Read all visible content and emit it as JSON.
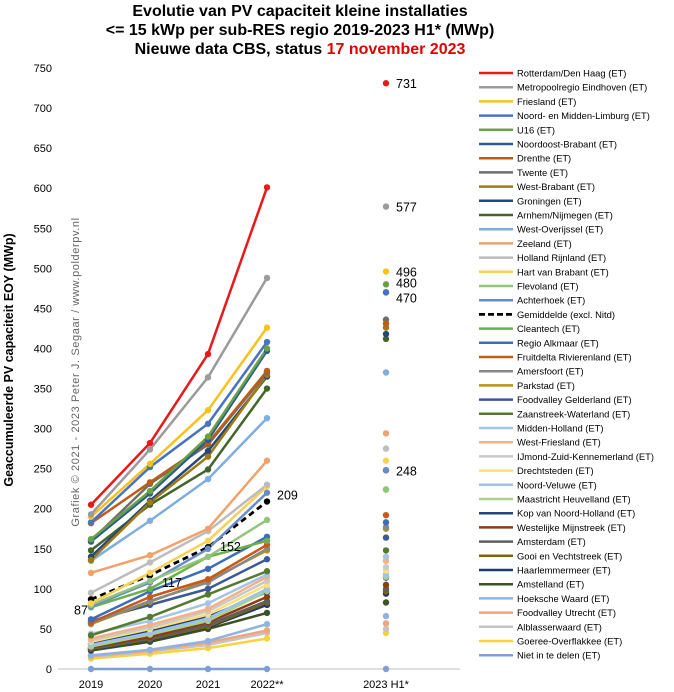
{
  "title": {
    "line1": "Evolutie  van PV capaciteit kleine installaties",
    "line2": "<= 15 kWp per sub-RES regio 2019-2023 H1* (MWp)",
    "line3_prefix": "Nieuwe data CBS, status ",
    "line3_date": "17 november 2023"
  },
  "credit": "Grafiek © 2021 - 2023 Peter J. Segaar / www.polderpv.nl",
  "chart_data": {
    "type": "line",
    "x": [
      "2019",
      "2020",
      "2021",
      "2022**",
      "2023 H1*"
    ],
    "ylabel": "Geaccumuleerde PV capaciteit EOY (MWp)",
    "ylim": [
      0,
      750
    ],
    "yticks": [
      0,
      50,
      100,
      150,
      200,
      250,
      300,
      350,
      400,
      450,
      500,
      550,
      600,
      650,
      700,
      750
    ],
    "grid": false,
    "legend_position": "right",
    "series": [
      {
        "name": "Rotterdam/Den Haag (ET)",
        "color": "#e8191b",
        "width": 2.5,
        "values": [
          205,
          282,
          393,
          601,
          731
        ]
      },
      {
        "name": "Metropoolregio Eindhoven (ET)",
        "color": "#9b9b9b",
        "width": 2.5,
        "values": [
          193,
          274,
          364,
          488,
          577
        ]
      },
      {
        "name": "Friesland (ET)",
        "color": "#f6c21b",
        "width": 2.5,
        "values": [
          190,
          256,
          323,
          426,
          496
        ]
      },
      {
        "name": "Noord- en Midden-Limburg (ET)",
        "color": "#4774c0",
        "width": 2.5,
        "values": [
          183,
          252,
          306,
          408,
          470
        ]
      },
      {
        "name": "U16 (ET)",
        "color": "#6ba145",
        "width": 2.5,
        "values": [
          162,
          222,
          290,
          400,
          480
        ]
      },
      {
        "name": "Noordoost-Brabant (ET)",
        "color": "#2b5c8f",
        "width": 2.5,
        "values": [
          159,
          219,
          286,
          397,
          470
        ]
      },
      {
        "name": "Drenthe (ET)",
        "color": "#c05b16",
        "width": 2.5,
        "values": [
          182,
          233,
          282,
          372,
          431
        ]
      },
      {
        "name": "Twente (ET)",
        "color": "#6e6e6e",
        "width": 2.5,
        "values": [
          160,
          231,
          280,
          370,
          436
        ]
      },
      {
        "name": "West-Brabant (ET)",
        "color": "#9d7b10",
        "width": 2.5,
        "values": [
          136,
          208,
          265,
          367,
          426
        ]
      },
      {
        "name": "Groningen (ET)",
        "color": "#264878",
        "width": 2.5,
        "values": [
          140,
          210,
          272,
          365,
          418
        ]
      },
      {
        "name": "Arnhem/Nijmegen (ET)",
        "color": "#426629",
        "width": 2.5,
        "values": [
          148,
          205,
          249,
          350,
          412
        ]
      },
      {
        "name": "West-Overijssel (ET)",
        "color": "#7eaee0",
        "width": 2.5,
        "values": [
          135,
          185,
          237,
          313,
          370
        ]
      },
      {
        "name": "Zeeland (ET)",
        "color": "#f0a26a",
        "width": 2.5,
        "values": [
          120,
          142,
          175,
          260,
          294
        ]
      },
      {
        "name": "Holland Rijnland (ET)",
        "color": "#bcbcbc",
        "width": 2.5,
        "values": [
          95,
          133,
          172,
          230,
          275
        ]
      },
      {
        "name": "Hart van Brabant (ET)",
        "color": "#f8d155",
        "width": 2.5,
        "values": [
          82,
          120,
          160,
          228,
          260
        ]
      },
      {
        "name": "Flevoland (ET)",
        "color": "#93c47d",
        "width": 2.5,
        "values": [
          80,
          110,
          140,
          186,
          224
        ]
      },
      {
        "name": "Achterhoek (ET)",
        "color": "#6a8cc8",
        "width": 2.5,
        "values": [
          78,
          108,
          150,
          220,
          248
        ]
      },
      {
        "name": "Gemiddelde (excl. Nitd)",
        "color": "#000000",
        "width": 2.5,
        "dashed": true,
        "values": [
          87,
          117,
          152,
          209,
          248
        ]
      },
      {
        "name": "Cleantech (ET)",
        "color": "#6db04a",
        "width": 2.5,
        "values": [
          77,
          100,
          140,
          160,
          224
        ]
      },
      {
        "name": "Regio Alkmaar (ET)",
        "color": "#3b6db8",
        "width": 2.5,
        "values": [
          62,
          97,
          125,
          165,
          183
        ]
      },
      {
        "name": "Fruitdelta Rivierenland (ET)",
        "color": "#c65a1a",
        "width": 2.5,
        "values": [
          58,
          90,
          112,
          155,
          192
        ]
      },
      {
        "name": "Amersfoort (ET)",
        "color": "#888888",
        "width": 2.5,
        "values": [
          57,
          85,
          108,
          150,
          177
        ]
      },
      {
        "name": "Parkstad (ET)",
        "color": "#b89412",
        "width": 2.5,
        "values": [
          56,
          84,
          110,
          148,
          175
        ]
      },
      {
        "name": "Foodvalley Gelderland (ET)",
        "color": "#3c5a99",
        "width": 2.5,
        "values": [
          60,
          80,
          100,
          137,
          164
        ]
      },
      {
        "name": "Zaanstreek-Waterland (ET)",
        "color": "#557a2f",
        "width": 2.5,
        "values": [
          42,
          65,
          93,
          122,
          148
        ]
      },
      {
        "name": "Midden-Holland (ET)",
        "color": "#a5c4e8",
        "width": 2.5,
        "values": [
          44,
          60,
          82,
          118,
          140
        ]
      },
      {
        "name": "West-Friesland (ET)",
        "color": "#f4b183",
        "width": 2.5,
        "values": [
          38,
          55,
          75,
          115,
          135
        ]
      },
      {
        "name": "IJmond-Zuid-Kennemerland (ET)",
        "color": "#c9c9c9",
        "width": 2.5,
        "values": [
          36,
          52,
          72,
          110,
          127
        ]
      },
      {
        "name": "Drechtsteden (ET)",
        "color": "#fbe07a",
        "width": 2.5,
        "values": [
          34,
          50,
          68,
          105,
          123
        ]
      },
      {
        "name": "Noord-Veluwe (ET)",
        "color": "#9dc3e6",
        "width": 2.5,
        "values": [
          30,
          45,
          63,
          100,
          118
        ]
      },
      {
        "name": "Maastricht Heuvelland (ET)",
        "color": "#a9d18e",
        "width": 2.5,
        "values": [
          28,
          43,
          60,
          97,
          115
        ]
      },
      {
        "name": "Kop van Noord-Holland (ET)",
        "color": "#23457a",
        "width": 2.5,
        "values": [
          32,
          47,
          65,
          96,
          114
        ]
      },
      {
        "name": "Westelijke Mijnstreek (ET)",
        "color": "#8c3c10",
        "width": 2.5,
        "values": [
          27,
          40,
          58,
          90,
          105
        ]
      },
      {
        "name": "Amsterdam (ET)",
        "color": "#5e5e5e",
        "width": 2.5,
        "values": [
          26,
          38,
          55,
          85,
          100
        ]
      },
      {
        "name": "Gooi en Vechtstreek (ET)",
        "color": "#7c6410",
        "width": 2.5,
        "values": [
          25,
          37,
          53,
          83,
          97
        ]
      },
      {
        "name": "Haarlemmermeer (ET)",
        "color": "#1f3a66",
        "width": 2.5,
        "values": [
          24,
          36,
          52,
          80,
          94
        ]
      },
      {
        "name": "Amstelland (ET)",
        "color": "#3b5323",
        "width": 2.5,
        "values": [
          23,
          34,
          50,
          70,
          83
        ]
      },
      {
        "name": "Hoeksche Waard (ET)",
        "color": "#8db3e2",
        "width": 2.5,
        "values": [
          17,
          24,
          35,
          56,
          66
        ]
      },
      {
        "name": "Foodvalley Utrecht (ET)",
        "color": "#f2a47a",
        "width": 2.5,
        "values": [
          16,
          23,
          33,
          48,
          57
        ]
      },
      {
        "name": "Alblasserwaard (ET)",
        "color": "#c4c4c4",
        "width": 2.5,
        "values": [
          15,
          22,
          30,
          45,
          50
        ]
      },
      {
        "name": "Goeree-Overflakkee (ET)",
        "color": "#f9d23c",
        "width": 2.5,
        "values": [
          13,
          19,
          26,
          38,
          45
        ]
      },
      {
        "name": "Niet in te delen (ET)",
        "color": "#7f9fd4",
        "width": 2.5,
        "values": [
          0,
          0,
          0,
          0,
          0
        ]
      }
    ],
    "point_labels": [
      {
        "series": "Rotterdam/Den Haag (ET)",
        "x": "2023 H1*",
        "text": "731"
      },
      {
        "series": "Metropoolregio Eindhoven (ET)",
        "x": "2023 H1*",
        "text": "577"
      },
      {
        "series": "Friesland (ET)",
        "x": "2023 H1*",
        "text": "496"
      },
      {
        "series": "U16 (ET)",
        "x": "2023 H1*",
        "text": "480"
      },
      {
        "series": "Noord- en Midden-Limburg (ET)",
        "x": "2023 H1*",
        "text": "470"
      },
      {
        "series": "Gemiddelde (excl. Nitd)",
        "x": "2023 H1*",
        "text": "248"
      },
      {
        "series": "Gemiddelde (excl. Nitd)",
        "x": "2022**",
        "text": "209"
      },
      {
        "series": "Gemiddelde (excl. Nitd)",
        "x": "2021",
        "text": "152"
      },
      {
        "series": "Gemiddelde (excl. Nitd)",
        "x": "2020",
        "text": "117"
      },
      {
        "series": "Gemiddelde (excl. Nitd)",
        "x": "2019",
        "text": "87"
      }
    ]
  }
}
